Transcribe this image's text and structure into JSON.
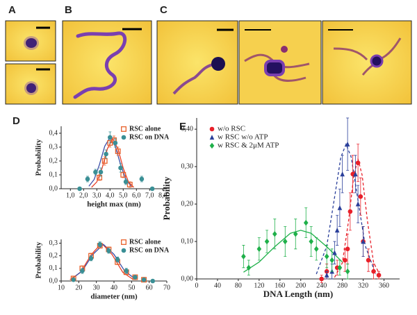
{
  "panels": [
    "A",
    "B",
    "C",
    "D",
    "E"
  ],
  "chart_data": [
    {
      "type": "scatter",
      "xlabel": "height max (nm)",
      "ylabel": "Probability",
      "legend": "upper right",
      "xlim": [
        0.3,
        8.3
      ],
      "ylim": [
        0,
        0.45
      ],
      "xticks": [
        {
          "value": 1,
          "label": "1,0"
        },
        {
          "value": 2,
          "label": "2,0"
        },
        {
          "value": 3,
          "label": "3,0"
        },
        {
          "value": 4,
          "label": "4,0"
        },
        {
          "value": 5,
          "label": "5,0"
        },
        {
          "value": 6,
          "label": "6,0"
        },
        {
          "value": 7,
          "label": "7,0"
        },
        {
          "value": 8,
          "label": "8,0"
        }
      ],
      "yticks": [
        {
          "value": 0,
          "label": "0,0"
        },
        {
          "value": 0.1,
          "label": "0,1"
        },
        {
          "value": 0.2,
          "label": "0,2"
        },
        {
          "value": 0.3,
          "label": "0,3"
        },
        {
          "value": 0.4,
          "label": "0,4"
        }
      ],
      "series": [
        {
          "name": "RSC alone",
          "color": "#e8612c",
          "marker": "square",
          "x": [
            3.2,
            3.6,
            4.0,
            4.3,
            4.6,
            5.0,
            5.5
          ],
          "values": [
            0.08,
            0.2,
            0.33,
            0.35,
            0.27,
            0.1,
            0.03
          ],
          "errors": [
            0.02,
            0.03,
            0.03,
            0.03,
            0.03,
            0.02,
            0.02
          ]
        },
        {
          "name": "RSC on DNA",
          "color": "#3a8f95",
          "marker": "circle",
          "x": [
            1.7,
            2.3,
            2.9,
            3.3,
            3.7,
            4.0,
            4.4,
            4.8,
            5.2,
            6.4,
            7.2
          ],
          "values": [
            0.0,
            0.07,
            0.12,
            0.12,
            0.25,
            0.37,
            0.33,
            0.15,
            0.05,
            0.07,
            0.0
          ],
          "errors": [
            0.01,
            0.02,
            0.02,
            0.03,
            0.03,
            0.04,
            0.03,
            0.03,
            0.02,
            0.02,
            0.01
          ]
        }
      ],
      "fits": [
        {
          "color": "#e8412a",
          "dashed": false,
          "x": [
            2.6,
            3.0,
            3.4,
            3.8,
            4.2,
            4.6,
            5.0,
            5.4,
            5.8
          ],
          "values": [
            0.01,
            0.049,
            0.148,
            0.288,
            0.36,
            0.288,
            0.148,
            0.049,
            0.01
          ]
        },
        {
          "color": "#3b4ea8",
          "dashed": false,
          "x": [
            2.4,
            2.8,
            3.2,
            3.6,
            4.0,
            4.4,
            4.8,
            5.2,
            5.6
          ],
          "values": [
            0.018,
            0.067,
            0.174,
            0.306,
            0.37,
            0.306,
            0.174,
            0.067,
            0.018
          ]
        }
      ]
    },
    {
      "type": "scatter",
      "xlabel": "diameter (nm)",
      "ylabel": "Probability",
      "legend": "upper right",
      "xlim": [
        10,
        70
      ],
      "ylim": [
        0,
        0.33
      ],
      "xticks": [
        10,
        20,
        30,
        40,
        50,
        60,
        70
      ],
      "yticks": [
        {
          "value": 0,
          "label": "0,0"
        },
        {
          "value": 0.1,
          "label": "0,1"
        },
        {
          "value": 0.2,
          "label": "0,2"
        },
        {
          "value": 0.3,
          "label": "0,3"
        }
      ],
      "series": [
        {
          "name": "RSC alone",
          "color": "#e8612c",
          "marker": "square",
          "x": [
            17,
            22,
            27,
            32,
            37,
            42,
            47,
            52,
            57
          ],
          "values": [
            0.02,
            0.1,
            0.2,
            0.28,
            0.25,
            0.15,
            0.07,
            0.03,
            0.01
          ],
          "errors": [
            0.01,
            0.02,
            0.02,
            0.02,
            0.02,
            0.02,
            0.02,
            0.01,
            0.01
          ]
        },
        {
          "name": "RSC on DNA",
          "color": "#3a8f95",
          "marker": "circle",
          "x": [
            17,
            22,
            27,
            32,
            37,
            42,
            47,
            52,
            57,
            62
          ],
          "values": [
            0.01,
            0.08,
            0.18,
            0.29,
            0.24,
            0.17,
            0.08,
            0.03,
            0.01,
            0.0
          ],
          "errors": [
            0.01,
            0.02,
            0.02,
            0.02,
            0.02,
            0.02,
            0.02,
            0.01,
            0.01,
            0.01
          ]
        }
      ],
      "fits": [
        {
          "color": "#e8412a",
          "dashed": false,
          "x": [
            15,
            21,
            27,
            33,
            39,
            45,
            51
          ],
          "values": [
            0.011,
            0.069,
            0.208,
            0.3,
            0.208,
            0.069,
            0.011
          ]
        },
        {
          "color": "#3b4ea8",
          "dashed": false,
          "x": [
            16,
            22,
            28,
            34,
            40,
            46,
            52
          ],
          "values": [
            0.016,
            0.081,
            0.211,
            0.29,
            0.211,
            0.081,
            0.016
          ]
        }
      ]
    },
    {
      "type": "scatter",
      "xlabel": "DNA Length (nm)",
      "ylabel": "Probability",
      "legend": "upper left",
      "xlim": [
        0,
        390
      ],
      "ylim": [
        0,
        0.43
      ],
      "xticks": [
        0,
        40,
        80,
        120,
        160,
        200,
        240,
        280,
        320,
        360
      ],
      "yticks": [
        {
          "value": 0,
          "label": "0,00"
        },
        {
          "value": 0.1,
          "label": "0,10"
        },
        {
          "value": 0.2,
          "label": "0,20"
        },
        {
          "value": 0.3,
          "label": "0,30"
        },
        {
          "value": 0.4,
          "label": "0,40"
        }
      ],
      "series": [
        {
          "name": "w/o RSC",
          "color": "#e8202a",
          "marker": "circle",
          "x": [
            240,
            250,
            270,
            285,
            290,
            295,
            300,
            310,
            315,
            320,
            330,
            340,
            350
          ],
          "values": [
            0.0,
            0.02,
            0.03,
            0.05,
            0.08,
            0.18,
            0.28,
            0.31,
            0.22,
            0.1,
            0.05,
            0.02,
            0.01
          ],
          "errors": [
            0.01,
            0.02,
            0.02,
            0.03,
            0.04,
            0.05,
            0.05,
            0.05,
            0.05,
            0.04,
            0.03,
            0.02,
            0.01
          ]
        },
        {
          "name": "w RSC w/o ATP",
          "color": "#2a3f9a",
          "marker": "triangle",
          "x": [
            250,
            260,
            265,
            270,
            275,
            280,
            290,
            305,
            310,
            320
          ],
          "values": [
            0.01,
            0.02,
            0.07,
            0.13,
            0.19,
            0.28,
            0.36,
            0.28,
            0.2,
            0.1
          ],
          "errors": [
            0.01,
            0.02,
            0.03,
            0.04,
            0.05,
            0.05,
            0.07,
            0.05,
            0.05,
            0.04
          ]
        },
        {
          "name": "w RSC & 2μM ATP",
          "color": "#1fb04a",
          "marker": "diamond",
          "x": [
            90,
            100,
            120,
            135,
            150,
            170,
            190,
            210,
            220,
            230,
            250,
            260,
            275,
            290
          ],
          "values": [
            0.06,
            0.03,
            0.08,
            0.1,
            0.12,
            0.1,
            0.12,
            0.15,
            0.1,
            0.08,
            0.06,
            0.05,
            0.03,
            0.02
          ],
          "errors": [
            0.03,
            0.02,
            0.03,
            0.03,
            0.04,
            0.04,
            0.04,
            0.04,
            0.04,
            0.03,
            0.03,
            0.03,
            0.02,
            0.02
          ]
        }
      ],
      "fits": [
        {
          "color": "#e8202a",
          "dashed": true,
          "x": [
            265,
            280,
            292,
            302,
            310,
            318,
            328,
            340,
            355
          ],
          "values": [
            0.004,
            0.043,
            0.156,
            0.277,
            0.32,
            0.277,
            0.156,
            0.043,
            0.004
          ]
        },
        {
          "color": "#2a3f9a",
          "dashed": true,
          "x": [
            230,
            250,
            265,
            277,
            287,
            297,
            309,
            324,
            344
          ],
          "values": [
            0.013,
            0.088,
            0.218,
            0.325,
            0.36,
            0.325,
            0.218,
            0.088,
            0.013
          ]
        },
        {
          "color": "#1fb04a",
          "dashed": false,
          "x": [
            90,
            120,
            150,
            180,
            200,
            220,
            250,
            280
          ],
          "values": [
            0.018,
            0.045,
            0.086,
            0.122,
            0.13,
            0.122,
            0.086,
            0.045
          ]
        }
      ]
    }
  ]
}
